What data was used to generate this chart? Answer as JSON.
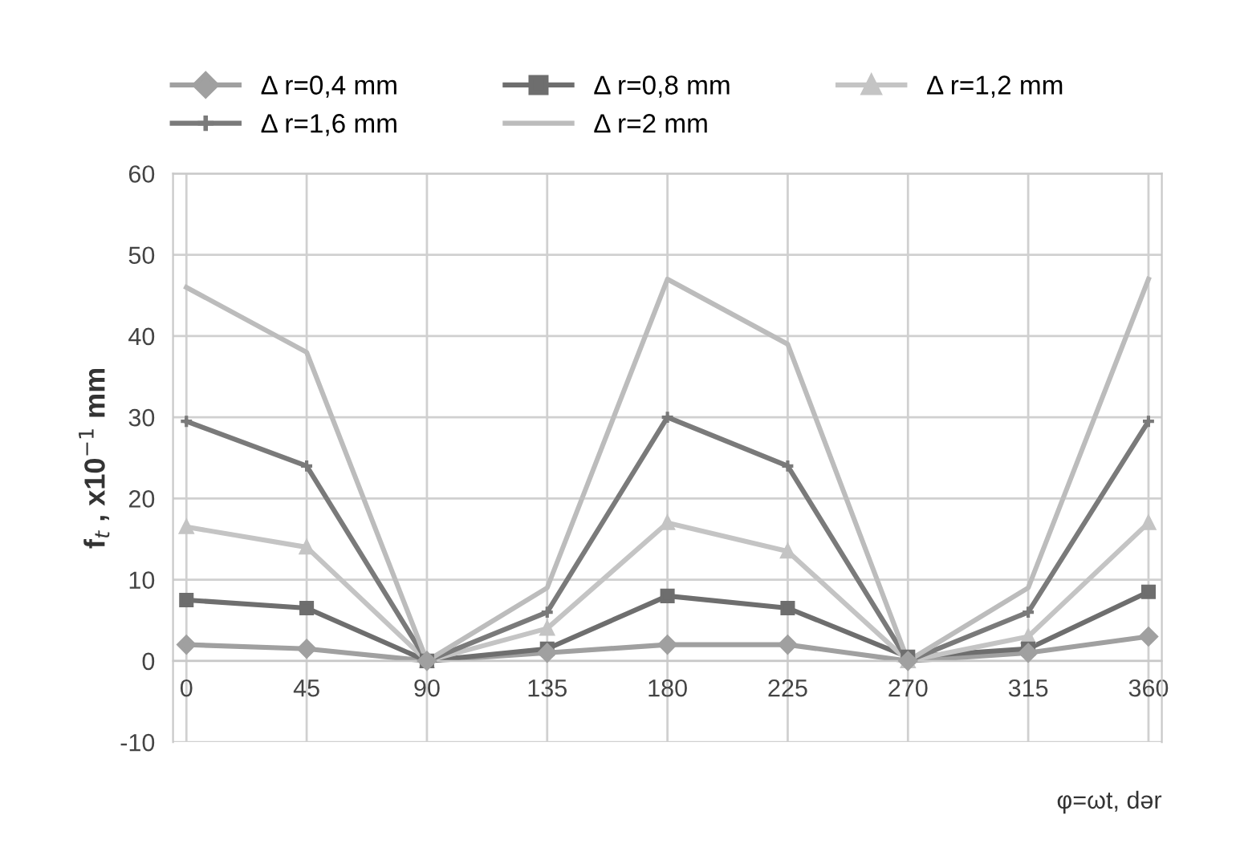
{
  "chart_data": {
    "type": "line",
    "xlabel": "φ=ωt, dər",
    "ylabel": "f$_{t}$ , x10$^{−1}$ mm",
    "x": [
      0,
      45,
      90,
      135,
      180,
      225,
      270,
      315,
      360
    ],
    "series": [
      {
        "name": "Δ r=0,4 mm",
        "color": "#a0a0a0",
        "marker": "diamond",
        "values": [
          2,
          1.5,
          0,
          1,
          2,
          2,
          0,
          1,
          3
        ]
      },
      {
        "name": "Δ r=0,8 mm",
        "color": "#6e6e6e",
        "marker": "square",
        "values": [
          7.5,
          6.5,
          0,
          1.5,
          8,
          6.5,
          0.5,
          1.5,
          8.5
        ]
      },
      {
        "name": "Δ r=1,2 mm",
        "color": "#c4c4c4",
        "marker": "triangle",
        "values": [
          16.5,
          14,
          0,
          4,
          17,
          13.5,
          0,
          3,
          17
        ]
      },
      {
        "name": "Δ r=1,6 mm",
        "color": "#7a7a7a",
        "marker": "cross",
        "values": [
          29.5,
          24,
          0,
          6,
          30,
          24,
          0,
          6,
          29.5
        ]
      },
      {
        "name": "Δ r=2 mm",
        "color": "#bcbcbc",
        "marker": "none",
        "values": [
          46,
          38,
          0,
          9,
          47,
          39,
          0,
          9,
          47
        ]
      }
    ],
    "xlim": [
      -5,
      365
    ],
    "ylim": [
      -10,
      60
    ],
    "xticks": [
      0,
      45,
      90,
      135,
      180,
      225,
      270,
      315,
      360
    ],
    "yticks": [
      -10,
      0,
      10,
      20,
      30,
      40,
      50,
      60
    ],
    "grid": true,
    "legend": "top",
    "line_style": "solid"
  }
}
